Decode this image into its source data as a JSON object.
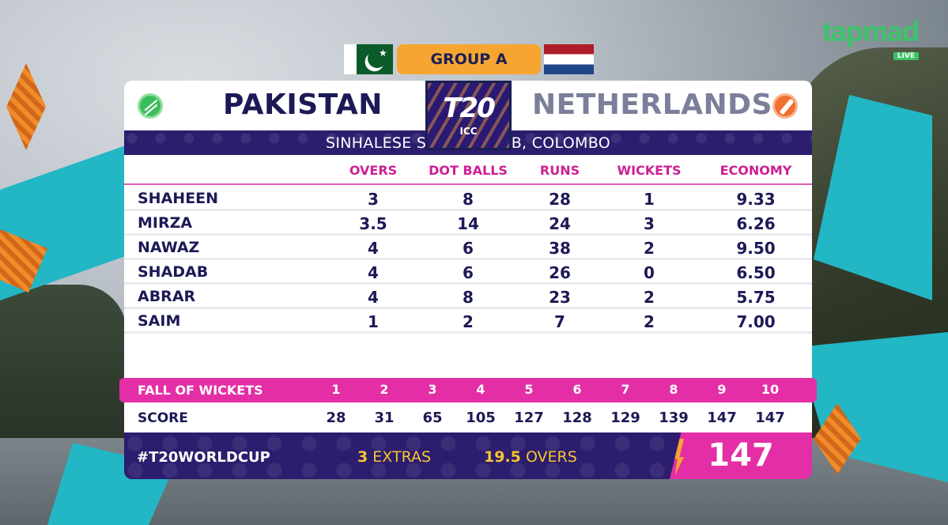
{
  "brand": {
    "name": "tapmad",
    "live": "LIVE"
  },
  "header": {
    "group": "GROUP A",
    "team_left": "PAKISTAN",
    "team_right": "NETHERLANDS",
    "logo_main": "T20",
    "logo_sub": "ICC",
    "venue": "SINHALESE SPORTS CLUB, COLOMBO"
  },
  "table": {
    "headers": [
      "OVERS",
      "DOT BALLS",
      "RUNS",
      "WICKETS",
      "ECONOMY"
    ],
    "rows": [
      {
        "name": "SHAHEEN",
        "overs": "3",
        "dots": "8",
        "runs": "28",
        "wickets": "1",
        "economy": "9.33"
      },
      {
        "name": "MIRZA",
        "overs": "3.5",
        "dots": "14",
        "runs": "24",
        "wickets": "3",
        "economy": "6.26"
      },
      {
        "name": "NAWAZ",
        "overs": "4",
        "dots": "6",
        "runs": "38",
        "wickets": "2",
        "economy": "9.50"
      },
      {
        "name": "SHADAB",
        "overs": "4",
        "dots": "6",
        "runs": "26",
        "wickets": "0",
        "economy": "6.50"
      },
      {
        "name": "ABRAR",
        "overs": "4",
        "dots": "8",
        "runs": "23",
        "wickets": "2",
        "economy": "5.75"
      },
      {
        "name": "SAIM",
        "overs": "1",
        "dots": "2",
        "runs": "7",
        "wickets": "2",
        "economy": "7.00"
      }
    ]
  },
  "fall_of_wickets": {
    "label": "FALL OF WICKETS",
    "numbers": [
      "1",
      "2",
      "3",
      "4",
      "5",
      "6",
      "7",
      "8",
      "9",
      "10"
    ],
    "score_label": "SCORE",
    "scores": [
      "28",
      "31",
      "65",
      "105",
      "127",
      "128",
      "129",
      "139",
      "147",
      "147"
    ]
  },
  "footer": {
    "hashtag": "#T20WORLDCUP",
    "extras_value": "3",
    "extras_label": "EXTRAS",
    "overs_value": "19.5",
    "overs_label": "OVERS",
    "total": "147"
  },
  "colors": {
    "navy": "#1c1a56",
    "magenta": "#e42ea6",
    "orange": "#f6a531",
    "purple": "#2c1d6e",
    "brand_green": "#3cc36a"
  },
  "icons": [
    "cricket-ball-icon",
    "cricket-bat-icon",
    "pakistan-flag-icon",
    "netherlands-flag-icon"
  ]
}
